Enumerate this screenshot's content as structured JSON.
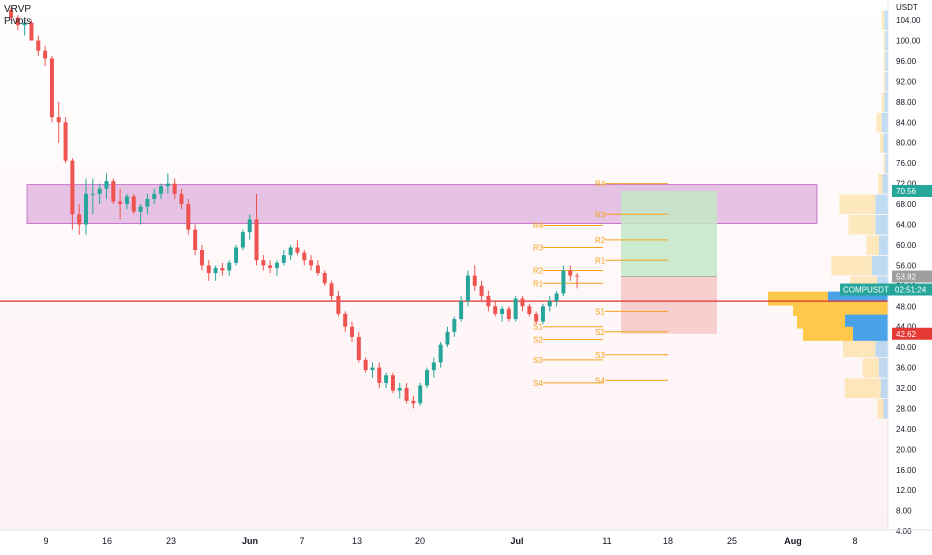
{
  "chart": {
    "currency": "USDT",
    "indicators": [
      "VRVP",
      "Pivots"
    ],
    "colors": {
      "up": "#26a69a",
      "down": "#ef5350",
      "box_fill": "#d59fd6",
      "hline": "#e03131",
      "pivot": "#f7a21b",
      "tp_fill": "#c2e7c7",
      "sl_fill": "#f6c8c8",
      "vp_up": "#4aa3e8",
      "vp_down": "#ffc84a"
    },
    "tags": {
      "price_high": "70.56",
      "price_mid": "53.82",
      "symbol": "COMPUSDT",
      "timer": "02:51:24",
      "price_low": "42.62"
    }
  },
  "chart_data": {
    "type": "candlestick",
    "y_unit": "USDT",
    "ylim": [
      0,
      110
    ],
    "y_ticks": [
      4,
      8,
      12,
      16,
      20,
      24,
      28,
      32,
      36,
      40,
      44,
      48,
      52,
      56,
      60,
      64,
      68,
      72,
      76,
      80,
      84,
      88,
      92,
      96,
      100,
      104
    ],
    "x_ticks": [
      "9",
      "16",
      "23",
      "Jun",
      "7",
      "13",
      "20",
      "Jul",
      "11",
      "18",
      "25",
      "Aug",
      "8"
    ],
    "candles_ohlc": [
      [
        106.0,
        106.5,
        104.0,
        104.5
      ],
      [
        104.5,
        105.0,
        102.0,
        103.0
      ],
      [
        103.0,
        104.0,
        101.0,
        103.5
      ],
      [
        103.5,
        104.0,
        100.0,
        100.0
      ],
      [
        100.0,
        101.0,
        97.0,
        98.0
      ],
      [
        98.0,
        99.0,
        95.0,
        96.5
      ],
      [
        96.5,
        97.0,
        84.0,
        85.0
      ],
      [
        85.0,
        88.0,
        80.0,
        84.0
      ],
      [
        84.0,
        85.0,
        76.0,
        76.5
      ],
      [
        76.5,
        77.0,
        63.0,
        66.0
      ],
      [
        66.0,
        68.0,
        62.0,
        64.0
      ],
      [
        64.0,
        73.0,
        62.0,
        70.0
      ],
      [
        70.0,
        73.0,
        66.0,
        70.0
      ],
      [
        70.0,
        72.0,
        68.0,
        71.0
      ],
      [
        71.0,
        74.0,
        69.0,
        72.5
      ],
      [
        72.5,
        73.0,
        68.0,
        68.5
      ],
      [
        68.5,
        71.0,
        65.0,
        68.0
      ],
      [
        68.0,
        70.0,
        67.0,
        69.5
      ],
      [
        69.5,
        70.0,
        66.0,
        66.5
      ],
      [
        66.5,
        68.0,
        64.0,
        67.5
      ],
      [
        67.5,
        70.0,
        66.0,
        69.0
      ],
      [
        69.0,
        71.0,
        68.0,
        70.0
      ],
      [
        70.0,
        72.0,
        69.0,
        71.5
      ],
      [
        71.5,
        74.0,
        70.0,
        72.0
      ],
      [
        72.0,
        73.0,
        69.0,
        70.0
      ],
      [
        70.0,
        71.0,
        67.0,
        68.0
      ],
      [
        68.0,
        69.0,
        62.0,
        63.0
      ],
      [
        63.0,
        64.0,
        58.0,
        59.0
      ],
      [
        59.0,
        60.0,
        55.0,
        56.0
      ],
      [
        56.0,
        57.0,
        53.0,
        54.5
      ],
      [
        54.5,
        56.0,
        53.0,
        55.5
      ],
      [
        55.5,
        56.5,
        54.0,
        55.0
      ],
      [
        55.0,
        57.0,
        54.0,
        56.5
      ],
      [
        56.5,
        60.0,
        56.0,
        59.5
      ],
      [
        59.5,
        63.0,
        59.0,
        62.5
      ],
      [
        62.5,
        66.0,
        61.0,
        65.0
      ],
      [
        65.0,
        70.0,
        56.0,
        57.0
      ],
      [
        57.0,
        58.0,
        55.0,
        56.0
      ],
      [
        56.0,
        57.0,
        54.5,
        55.5
      ],
      [
        55.5,
        57.0,
        54.0,
        56.5
      ],
      [
        56.5,
        59.0,
        56.0,
        58.0
      ],
      [
        58.0,
        60.0,
        57.0,
        59.5
      ],
      [
        59.5,
        61.0,
        58.0,
        58.5
      ],
      [
        58.5,
        59.0,
        56.0,
        57.0
      ],
      [
        57.0,
        58.0,
        55.0,
        56.0
      ],
      [
        56.0,
        57.0,
        54.0,
        54.5
      ],
      [
        54.5,
        55.0,
        52.0,
        52.5
      ],
      [
        52.5,
        53.0,
        49.0,
        50.0
      ],
      [
        50.0,
        51.0,
        46.0,
        46.5
      ],
      [
        46.5,
        47.0,
        43.0,
        44.0
      ],
      [
        44.0,
        45.0,
        41.0,
        42.0
      ],
      [
        42.0,
        43.0,
        37.0,
        37.5
      ],
      [
        37.5,
        38.0,
        35.0,
        35.5
      ],
      [
        35.5,
        37.0,
        34.0,
        36.0
      ],
      [
        36.0,
        37.0,
        32.0,
        33.0
      ],
      [
        33.0,
        35.0,
        32.0,
        34.5
      ],
      [
        34.5,
        35.0,
        31.0,
        31.5
      ],
      [
        31.5,
        33.0,
        30.0,
        32.0
      ],
      [
        32.0,
        33.0,
        29.0,
        29.5
      ],
      [
        29.5,
        30.5,
        28.0,
        29.0
      ],
      [
        29.0,
        33.0,
        28.5,
        32.5
      ],
      [
        32.5,
        36.0,
        32.0,
        35.5
      ],
      [
        35.5,
        38.0,
        34.0,
        37.0
      ],
      [
        37.0,
        41.0,
        36.0,
        40.5
      ],
      [
        40.5,
        44.0,
        40.0,
        43.0
      ],
      [
        43.0,
        46.0,
        42.0,
        45.5
      ],
      [
        45.5,
        50.0,
        45.0,
        49.0
      ],
      [
        49.0,
        55.0,
        48.0,
        54.0
      ],
      [
        54.0,
        56.0,
        51.0,
        52.0
      ],
      [
        52.0,
        53.0,
        49.0,
        50.0
      ],
      [
        50.0,
        51.0,
        47.0,
        48.0
      ],
      [
        48.0,
        49.0,
        46.0,
        46.5
      ],
      [
        46.5,
        48.0,
        45.0,
        47.5
      ],
      [
        47.5,
        48.0,
        45.0,
        45.5
      ],
      [
        45.5,
        50.0,
        45.0,
        49.5
      ],
      [
        49.5,
        50.0,
        47.0,
        48.0
      ],
      [
        48.0,
        48.5,
        46.0,
        46.5
      ],
      [
        46.5,
        47.0,
        44.5,
        45.0
      ],
      [
        45.0,
        48.5,
        44.5,
        48.0
      ],
      [
        48.0,
        50.0,
        47.0,
        49.0
      ],
      [
        49.0,
        51.0,
        48.0,
        50.5
      ],
      [
        50.5,
        56.0,
        50.0,
        55.0
      ],
      [
        55.0,
        56.0,
        53.0,
        54.0
      ],
      [
        54.0,
        54.5,
        51.5,
        53.82
      ]
    ],
    "annotations": {
      "box_zone": [
        64.2,
        71.8
      ],
      "horizontal_line": 49.0,
      "long_position": {
        "entry": 53.82,
        "target": 70.56,
        "stop": 42.62
      }
    },
    "pivots_left": {
      "R4": 63.8,
      "R3": 59.5,
      "R2": 55.0,
      "R1": 52.5,
      "S1": 44.0,
      "S2": 41.5,
      "S3": 37.5,
      "S4": 33.0
    },
    "pivots_right": {
      "R4": 72.0,
      "R3": 66.0,
      "R2": 61.0,
      "R1": 57.0,
      "S1": 47.0,
      "S2": 43.0,
      "S3": 38.5,
      "S4": 33.5
    },
    "volume_profile_right": [
      {
        "price": 104,
        "up": 0.04,
        "down": 0.03
      },
      {
        "price": 100,
        "up": 0.03,
        "down": 0.02
      },
      {
        "price": 96,
        "up": 0.03,
        "down": 0.02
      },
      {
        "price": 92,
        "up": 0.03,
        "down": 0.02
      },
      {
        "price": 88,
        "up": 0.04,
        "down": 0.03
      },
      {
        "price": 84,
        "up": 0.07,
        "down": 0.06
      },
      {
        "price": 80,
        "up": 0.05,
        "down": 0.04
      },
      {
        "price": 76,
        "up": 0.03,
        "down": 0.02
      },
      {
        "price": 72,
        "up": 0.06,
        "down": 0.05
      },
      {
        "price": 68,
        "up": 0.14,
        "down": 0.4
      },
      {
        "price": 64,
        "up": 0.14,
        "down": 0.3
      },
      {
        "price": 60,
        "up": 0.1,
        "down": 0.14
      },
      {
        "price": 56,
        "up": 0.18,
        "down": 0.45
      },
      {
        "price": 52,
        "up": 0.12,
        "down": 0.3
      },
      {
        "price": 48,
        "up": 0.2,
        "down": 0.3
      },
      {
        "price": 44,
        "up": 0.35,
        "down": 0.48
      },
      {
        "price": 40,
        "up": 0.14,
        "down": 0.36
      },
      {
        "price": 36,
        "up": 0.1,
        "down": 0.18
      },
      {
        "price": 32,
        "up": 0.08,
        "down": 0.4
      },
      {
        "price": 28,
        "up": 0.05,
        "down": 0.07
      }
    ],
    "volume_profile_session": [
      {
        "price": 49.5,
        "up": 0.6,
        "down": 0.6
      },
      {
        "price": 47.5,
        "up": 0.0,
        "down": 0.95
      },
      {
        "price": 45.0,
        "up": 0.43,
        "down": 0.48
      },
      {
        "price": 42.6,
        "up": 0.35,
        "down": 0.5
      }
    ]
  }
}
